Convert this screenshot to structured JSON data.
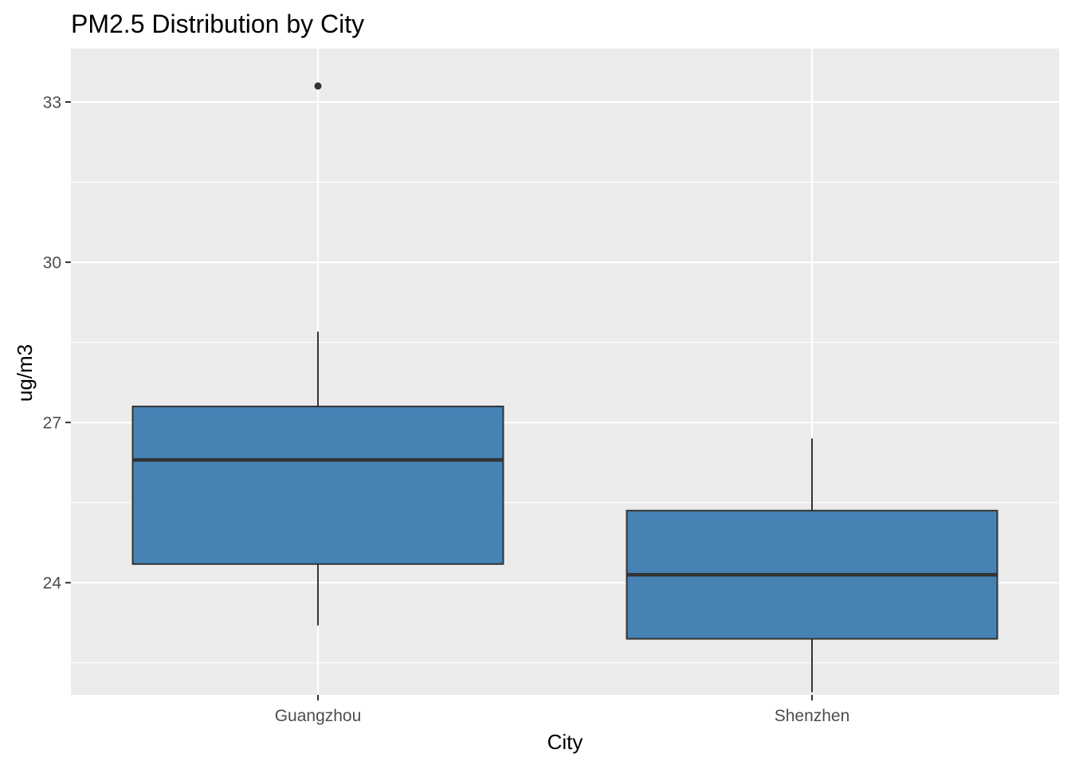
{
  "chart_data": {
    "type": "boxplot",
    "title": "PM2.5 Distribution by City",
    "xlabel": "City",
    "ylabel": "ug/m3",
    "ylim": [
      21.9,
      34.0
    ],
    "yticks": [
      24,
      27,
      30,
      33
    ],
    "ytick_labels": [
      "24",
      "27",
      "30",
      "33"
    ],
    "y_minor_ticks": [
      22.5,
      25.5,
      28.5,
      31.5
    ],
    "grid": true,
    "categories": [
      "Guangzhou",
      "Shenzhen"
    ],
    "boxes": [
      {
        "category": "Guangzhou",
        "whisker_low": 23.2,
        "q1": 24.35,
        "median": 26.3,
        "q3": 27.3,
        "whisker_high": 28.7,
        "outliers": [
          33.3
        ]
      },
      {
        "category": "Shenzhen",
        "whisker_low": 21.95,
        "q1": 22.95,
        "median": 24.15,
        "q3": 25.35,
        "whisker_high": 26.7,
        "outliers": []
      }
    ],
    "colors": {
      "panel": "#ebebeb",
      "grid": "#ffffff",
      "box_fill": "#4682b4",
      "box_line": "#333333",
      "tick": "#333333"
    }
  }
}
